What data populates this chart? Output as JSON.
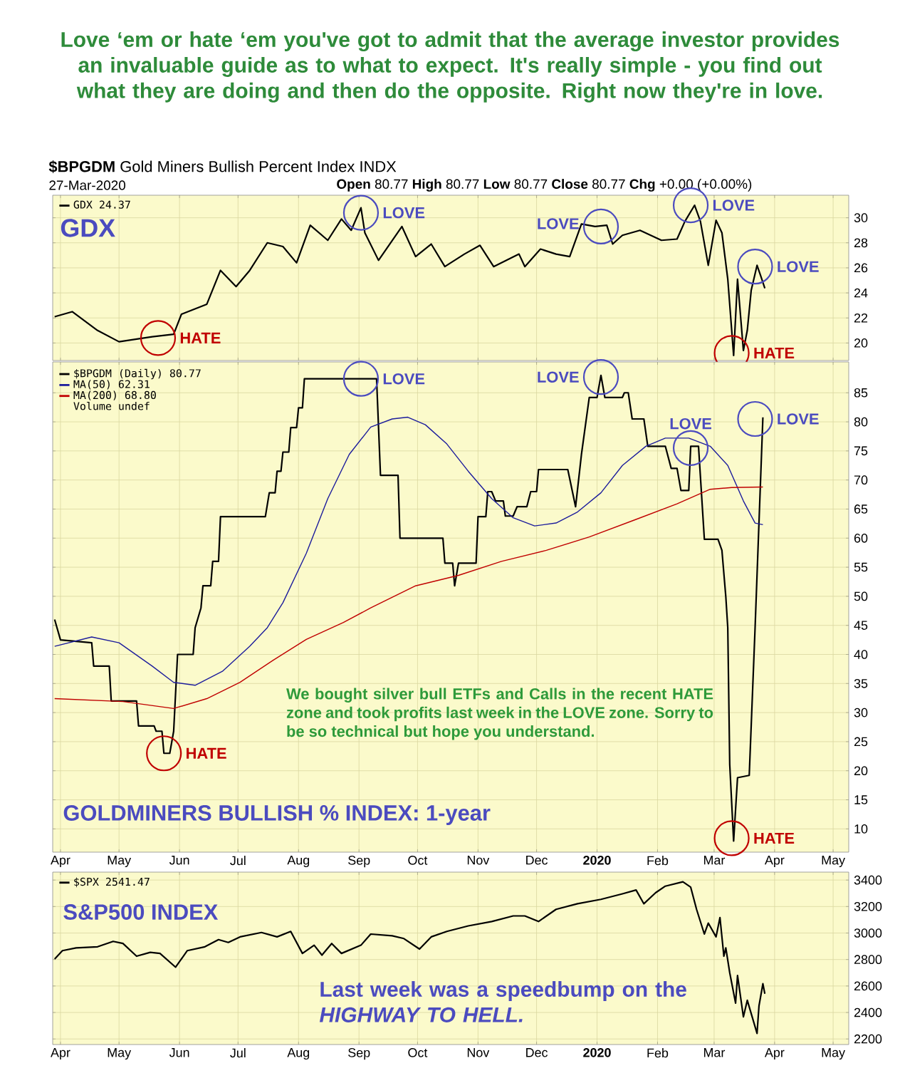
{
  "chart_data": [
    {
      "type": "line",
      "title": "GDX",
      "series": [
        {
          "name": "GDX 24.37",
          "color": "#000000",
          "x": [
            "2019-03-29",
            "2019-04-07",
            "2019-04-20",
            "2019-05-01",
            "2019-05-18",
            "2019-05-29",
            "2019-06-02",
            "2019-06-15",
            "2019-06-22",
            "2019-06-30",
            "2019-07-07",
            "2019-07-16",
            "2019-07-24",
            "2019-07-31",
            "2019-08-07",
            "2019-08-16",
            "2019-08-23",
            "2019-08-28",
            "2019-09-02",
            "2019-09-04",
            "2019-09-11",
            "2019-09-23",
            "2019-09-30",
            "2019-10-08",
            "2019-10-15",
            "2019-10-25",
            "2019-11-02",
            "2019-11-09",
            "2019-11-22",
            "2019-11-25",
            "2019-12-03",
            "2019-12-11",
            "2019-12-18",
            "2019-12-24",
            "2019-12-31",
            "2020-01-06",
            "2020-01-09",
            "2020-01-14",
            "2020-01-23",
            "2020-02-03",
            "2020-02-11",
            "2020-02-15",
            "2020-02-20",
            "2020-02-23",
            "2020-02-27",
            "2020-03-02",
            "2020-03-05",
            "2020-03-08",
            "2020-03-11",
            "2020-03-13",
            "2020-03-16",
            "2020-03-18",
            "2020-03-20",
            "2020-03-23",
            "2020-03-25",
            "2020-03-27"
          ],
          "values": [
            22.1,
            22.5,
            21.0,
            20.1,
            20.5,
            20.7,
            22.3,
            23.1,
            25.8,
            24.5,
            25.8,
            28.0,
            27.7,
            26.4,
            29.4,
            28.2,
            29.9,
            29.0,
            30.8,
            28.8,
            26.6,
            29.3,
            26.9,
            27.9,
            26.1,
            27.1,
            27.8,
            26.1,
            27.1,
            26.1,
            27.5,
            27.1,
            26.9,
            29.5,
            29.3,
            29.4,
            27.9,
            28.6,
            29.0,
            28.2,
            28.3,
            29.7,
            31.0,
            29.7,
            26.2,
            29.8,
            28.8,
            25.1,
            19.0,
            25.1,
            19.4,
            21.0,
            24.2,
            26.2,
            25.3,
            24.37
          ]
        }
      ],
      "xlim": [
        "2019-03-28",
        "2020-05-09"
      ],
      "xticks": [
        {
          "value": "2019-04-01",
          "label": null
        },
        {
          "value": "2019-05-01",
          "label": null
        },
        {
          "value": "2019-06-01",
          "label": null
        },
        {
          "value": "2019-07-01",
          "label": null
        },
        {
          "value": "2019-08-01",
          "label": null
        },
        {
          "value": "2019-09-01",
          "label": null
        },
        {
          "value": "2019-10-01",
          "label": null
        },
        {
          "value": "2019-11-01",
          "label": null
        },
        {
          "value": "2019-12-01",
          "label": null
        },
        {
          "value": "2020-01-01",
          "label": null
        },
        {
          "value": "2020-02-01",
          "label": null
        },
        {
          "value": "2020-03-01",
          "label": null
        },
        {
          "value": "2020-04-01",
          "label": null
        },
        {
          "value": "2020-05-01",
          "label": null
        }
      ],
      "ylim": [
        18.6,
        31.8
      ],
      "yticks": [
        20,
        22,
        24,
        26,
        28,
        30
      ],
      "tick_labels": "y",
      "grid": true,
      "legend": "top left",
      "annotations": [
        "Love ‘em or hate ‘em you've got to admit that the average investor provides an invaluable guide as to what to expect. It's really simple - you find out what they are doing and then do the opposite. Right now they're in love.",
        "**$BPGDM** Gold Miners Bullish Percent Index INDX",
        "27-Mar-2020",
        "**Open** 80.77 **High** 80.77 **Low** 80.77 **Close** 80.77 **Chg** +0.00 (+0.00%)",
        {
          "text": "HATE",
          "x": "2019-05-21",
          "y": 20.4
        },
        {
          "text": "LOVE",
          "x": "2019-09-02",
          "y": 30.4
        },
        {
          "text": "LOVE",
          "x": "2020-01-03",
          "y": 29.3
        },
        {
          "text": "LOVE",
          "x": "2020-02-18",
          "y": 31.0
        },
        {
          "text": "HATE",
          "x": "2020-03-10",
          "y": 19.2
        },
        {
          "text": "LOVE",
          "x": "2020-03-22",
          "y": 26.1
        }
      ]
    },
    {
      "type": "line",
      "title": "GOLDMINERS BULLISH % INDEX: 1-year",
      "series": [
        {
          "name": "$BPGDM (Daily) 80.77",
          "color": "#000000",
          "x": [
            "2019-03-29",
            "2019-04-01",
            "2019-04-17",
            "2019-04-18",
            "2019-04-26",
            "2019-04-27",
            "2019-05-10",
            "2019-05-11",
            "2019-05-19",
            "2019-05-20",
            "2019-05-23",
            "2019-05-24",
            "2019-05-27",
            "2019-05-29",
            "2019-05-31",
            "2019-06-08",
            "2019-06-09",
            "2019-06-12",
            "2019-06-13",
            "2019-06-17",
            "2019-06-18",
            "2019-06-21",
            "2019-06-22",
            "2019-07-15",
            "2019-07-17",
            "2019-07-20",
            "2019-07-21",
            "2019-07-23",
            "2019-07-24",
            "2019-07-27",
            "2019-07-28",
            "2019-07-31",
            "2019-08-01",
            "2019-08-03",
            "2019-08-04",
            "2019-09-10",
            "2019-09-12",
            "2019-09-21",
            "2019-09-22",
            "2019-10-14",
            "2019-10-15",
            "2019-10-19",
            "2019-10-20",
            "2019-10-22",
            "2019-10-31",
            "2019-11-01",
            "2019-11-05",
            "2019-11-06",
            "2019-11-08",
            "2019-11-10",
            "2019-11-14",
            "2019-11-15",
            "2019-11-19",
            "2019-11-21",
            "2019-11-26",
            "2019-11-28",
            "2019-12-01",
            "2019-12-02",
            "2019-12-17",
            "2019-12-21",
            "2019-12-24",
            "2019-12-28",
            "2020-01-01",
            "2020-01-03",
            "2020-01-05",
            "2020-01-14",
            "2020-01-15",
            "2020-01-17",
            "2020-01-19",
            "2020-01-25",
            "2020-01-27",
            "2020-02-05",
            "2020-02-08",
            "2020-02-11",
            "2020-02-13",
            "2020-02-17",
            "2020-02-18",
            "2020-02-22",
            "2020-02-25",
            "2020-03-03",
            "2020-03-05",
            "2020-03-07",
            "2020-03-08",
            "2020-03-09",
            "2020-03-11",
            "2020-03-13",
            "2020-03-19",
            "2020-03-22",
            "2020-03-26"
          ],
          "values": [
            46,
            42.5,
            42,
            38,
            38,
            32,
            32,
            27.7,
            27.7,
            26.8,
            26.8,
            23,
            23,
            26.8,
            40,
            40,
            44.6,
            48,
            51.8,
            51.8,
            56,
            56,
            63.7,
            63.7,
            67.8,
            67.8,
            71.5,
            71.5,
            74.8,
            74.8,
            79,
            79,
            82.4,
            82.4,
            87.4,
            87.4,
            70.8,
            70.8,
            60,
            60,
            55.7,
            55.7,
            51.8,
            55.7,
            55.7,
            63.7,
            63.7,
            68,
            68,
            66.4,
            66.4,
            63.8,
            63.8,
            65.4,
            65.4,
            68,
            68,
            71.8,
            71.8,
            65.4,
            74.4,
            84.2,
            84.2,
            88,
            84.2,
            84.2,
            85,
            85,
            80.5,
            80.5,
            75.8,
            75.8,
            72,
            72,
            68.2,
            68.2,
            75.8,
            75.8,
            59.8,
            59.8,
            57.9,
            49.9,
            44.6,
            21.1,
            7.9,
            18.8,
            19.2,
            44.6,
            80.77
          ]
        },
        {
          "name": "MA(50) 62.31",
          "color": "#1c1c9c",
          "x": [
            "2019-03-29",
            "2019-04-17",
            "2019-05-01",
            "2019-05-18",
            "2019-05-29",
            "2019-06-09",
            "2019-06-23",
            "2019-07-07",
            "2019-07-16",
            "2019-07-24",
            "2019-08-05",
            "2019-08-16",
            "2019-08-27",
            "2019-09-07",
            "2019-09-18",
            "2019-09-26",
            "2019-10-05",
            "2019-10-16",
            "2019-10-27",
            "2019-11-08",
            "2019-11-19",
            "2019-11-30",
            "2019-12-11",
            "2019-12-22",
            "2020-01-03",
            "2020-01-14",
            "2020-01-26",
            "2020-02-05",
            "2020-02-17",
            "2020-02-28",
            "2020-03-08",
            "2020-03-16",
            "2020-03-22",
            "2020-03-26"
          ],
          "values": [
            41.4,
            43,
            42,
            38,
            35.2,
            34.7,
            37.1,
            41.4,
            44.6,
            48.9,
            57.4,
            66.8,
            74.4,
            79.1,
            80.5,
            80.8,
            79.5,
            76.2,
            71.5,
            66.8,
            63.5,
            62.1,
            62.6,
            64.5,
            67.8,
            72.5,
            75.8,
            77.2,
            77.2,
            75.8,
            72.5,
            66.4,
            62.6,
            62.31
          ]
        },
        {
          "name": "MA(200) 68.80",
          "color": "#c00000",
          "x": [
            "2019-03-29",
            "2019-05-03",
            "2019-05-29",
            "2019-06-15",
            "2019-07-02",
            "2019-07-19",
            "2019-08-05",
            "2019-08-24",
            "2019-09-07",
            "2019-09-30",
            "2019-10-22",
            "2019-11-13",
            "2019-12-06",
            "2019-12-28",
            "2020-01-20",
            "2020-02-11",
            "2020-02-28",
            "2020-03-10",
            "2020-03-26"
          ],
          "values": [
            32.4,
            31.9,
            30.7,
            32.4,
            35.2,
            39,
            42.6,
            45.5,
            48,
            51.8,
            53.6,
            56,
            57.9,
            60.2,
            63.1,
            65.9,
            68.4,
            68.7,
            68.8
          ]
        }
      ],
      "xlim": [
        "2019-03-28",
        "2020-05-09"
      ],
      "xticks": [
        {
          "value": "2019-04-01",
          "label": "Apr"
        },
        {
          "value": "2019-05-01",
          "label": "May"
        },
        {
          "value": "2019-06-01",
          "label": "Jun"
        },
        {
          "value": "2019-07-01",
          "label": "Jul"
        },
        {
          "value": "2019-08-01",
          "label": "Aug"
        },
        {
          "value": "2019-09-01",
          "label": "Sep"
        },
        {
          "value": "2019-10-01",
          "label": "Oct"
        },
        {
          "value": "2019-11-01",
          "label": "Nov"
        },
        {
          "value": "2019-12-01",
          "label": "Dec"
        },
        {
          "value": "2020-01-01",
          "label": "**2020**"
        },
        {
          "value": "2020-02-01",
          "label": "Feb"
        },
        {
          "value": "2020-03-01",
          "label": "Mar"
        },
        {
          "value": "2020-04-01",
          "label": "Apr"
        },
        {
          "value": "2020-05-01",
          "label": "May"
        }
      ],
      "ylim": [
        6,
        90.3
      ],
      "yticks": [
        10,
        15,
        20,
        25,
        30,
        35,
        40,
        45,
        50,
        55,
        60,
        65,
        70,
        75,
        80,
        85
      ],
      "grid": true,
      "legend": "top left",
      "annotations": [
        "Volume undef",
        "We bought silver bull ETFs and Calls in the recent HATE zone and took profits last week in the LOVE zone. Sorry to be so technical but hope you understand.",
        {
          "text": "HATE",
          "x": "2019-05-24",
          "y": 23.0
        },
        {
          "text": "LOVE",
          "x": "2019-09-02",
          "y": 87.4
        },
        {
          "text": "LOVE",
          "x": "2020-01-03",
          "y": 87.7
        },
        {
          "text": "LOVE",
          "x": "2020-02-18",
          "y": 75.5
        },
        {
          "text": "HATE",
          "x": "2020-03-10",
          "y": 8.4
        },
        {
          "text": "LOVE",
          "x": "2020-03-22",
          "y": 80.5
        }
      ]
    },
    {
      "type": "line",
      "title": "S&P500 INDEX",
      "series": [
        {
          "name": "$SPX 2541.47",
          "color": "#000000",
          "x": [
            "2019-03-29",
            "2019-04-02",
            "2019-04-09",
            "2019-04-20",
            "2019-04-28",
            "2019-05-03",
            "2019-05-10",
            "2019-05-17",
            "2019-05-22",
            "2019-05-30",
            "2019-06-05",
            "2019-06-14",
            "2019-06-21",
            "2019-06-26",
            "2019-07-02",
            "2019-07-13",
            "2019-07-21",
            "2019-07-28",
            "2019-08-03",
            "2019-08-09",
            "2019-08-13",
            "2019-08-18",
            "2019-08-23",
            "2019-09-02",
            "2019-09-07",
            "2019-09-18",
            "2019-09-24",
            "2019-10-02",
            "2019-10-08",
            "2019-10-16",
            "2019-10-27",
            "2019-11-08",
            "2019-11-19",
            "2019-11-25",
            "2019-12-02",
            "2019-12-11",
            "2019-12-22",
            "2020-01-03",
            "2020-01-14",
            "2020-01-21",
            "2020-01-25",
            "2020-01-31",
            "2020-02-05",
            "2020-02-14",
            "2020-02-18",
            "2020-02-21",
            "2020-02-25",
            "2020-02-27",
            "2020-03-02",
            "2020-03-04",
            "2020-03-06",
            "2020-03-07",
            "2020-03-09",
            "2020-03-12",
            "2020-03-13",
            "2020-03-16",
            "2020-03-18",
            "2020-03-23",
            "2020-03-24",
            "2020-03-26",
            "2020-03-27"
          ],
          "values": [
            2804,
            2867,
            2888,
            2896,
            2937,
            2921,
            2825,
            2854,
            2846,
            2742,
            2867,
            2896,
            2950,
            2929,
            2971,
            3004,
            2971,
            3012,
            2846,
            2908,
            2833,
            2921,
            2846,
            2908,
            2992,
            2979,
            2958,
            2879,
            2971,
            3012,
            3054,
            3087,
            3129,
            3129,
            3087,
            3179,
            3221,
            3254,
            3296,
            3325,
            3221,
            3304,
            3354,
            3387,
            3346,
            3179,
            2992,
            3075,
            2971,
            3117,
            2825,
            2888,
            2700,
            2471,
            2679,
            2367,
            2492,
            2242,
            2450,
            2617,
            2541.47
          ]
        }
      ],
      "xlim": [
        "2019-03-28",
        "2020-05-09"
      ],
      "xticks": [
        {
          "value": "2019-04-01",
          "label": "Apr"
        },
        {
          "value": "2019-05-01",
          "label": "May"
        },
        {
          "value": "2019-06-01",
          "label": "Jun"
        },
        {
          "value": "2019-07-01",
          "label": "Jul"
        },
        {
          "value": "2019-08-01",
          "label": "Aug"
        },
        {
          "value": "2019-09-01",
          "label": "Sep"
        },
        {
          "value": "2019-10-01",
          "label": "Oct"
        },
        {
          "value": "2019-11-01",
          "label": "Nov"
        },
        {
          "value": "2019-12-01",
          "label": "Dec"
        },
        {
          "value": "2020-01-01",
          "label": "**2020**"
        },
        {
          "value": "2020-02-01",
          "label": "Feb"
        },
        {
          "value": "2020-03-01",
          "label": "Mar"
        },
        {
          "value": "2020-04-01",
          "label": "Apr"
        },
        {
          "value": "2020-05-01",
          "label": "May"
        }
      ],
      "ylim": [
        2158,
        3460
      ],
      "yticks": [
        2200,
        2400,
        2600,
        2800,
        3000,
        3200,
        3400
      ],
      "grid": true,
      "legend": "top left",
      "annotations": [
        "Last week was a speedbump on the *HIGHWAY TO HELL.*"
      ]
    }
  ]
}
